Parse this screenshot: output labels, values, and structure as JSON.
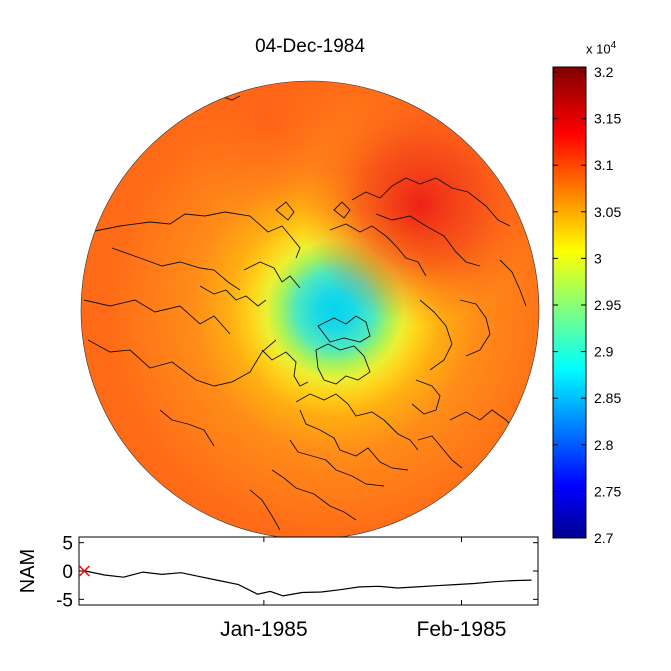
{
  "title": "04-Dec-1984",
  "colorbar": {
    "multiplier_base": "x 10",
    "multiplier_exp": "4",
    "ticks": [
      "3.2",
      "3.15",
      "3.1",
      "3.05",
      "3",
      "2.95",
      "2.9",
      "2.85",
      "2.8",
      "2.75",
      "2.7"
    ],
    "min": 2.7,
    "max": 3.2,
    "colormap": "jet"
  },
  "chart_data": [
    {
      "type": "heatmap",
      "title": "04-Dec-1984",
      "projection": "north-polar stereographic",
      "colorbar_range": [
        27000,
        32000
      ],
      "features": [
        {
          "region": "pole (Arctic)",
          "approx_value": 29300
        },
        {
          "region": "mid-latitudes ring",
          "approx_value": 30200
        },
        {
          "region": "outer edge (subtropics)",
          "approx_value": 31000
        },
        {
          "region": "NE Asia / N Pacific (maximum)",
          "approx_value": 31300
        }
      ]
    },
    {
      "type": "line",
      "ylabel": "NAM",
      "ylim": [
        -6,
        6
      ],
      "yticks": [
        "5",
        "0",
        "-5"
      ],
      "xticks": [
        "Jan-1985",
        "Feb-1985"
      ],
      "series": [
        {
          "x": [
            "1984-12-04",
            "1984-12-07",
            "1984-12-10",
            "1984-12-13",
            "1984-12-16",
            "1984-12-19",
            "1984-12-22",
            "1984-12-25",
            "1984-12-28",
            "1984-12-31",
            "1985-01-02",
            "1985-01-04",
            "1985-01-07",
            "1985-01-10",
            "1985-01-13",
            "1985-01-16",
            "1985-01-19",
            "1985-01-22",
            "1985-01-25",
            "1985-01-28",
            "1985-01-31",
            "1985-02-03",
            "1985-02-06",
            "1985-02-09",
            "1985-02-12"
          ],
          "values": [
            0,
            -0.7,
            -1.1,
            -0.2,
            -0.6,
            -0.3,
            -1.0,
            -1.7,
            -2.4,
            -4.1,
            -3.6,
            -4.4,
            -3.8,
            -3.7,
            -3.3,
            -2.8,
            -2.7,
            -3.0,
            -2.8,
            -2.6,
            -2.4,
            -2.2,
            -1.9,
            -1.7,
            -1.6
          ]
        }
      ],
      "marker": {
        "x": "1984-12-04",
        "y": 0,
        "symbol": "x",
        "color": "#ff0000"
      }
    }
  ]
}
